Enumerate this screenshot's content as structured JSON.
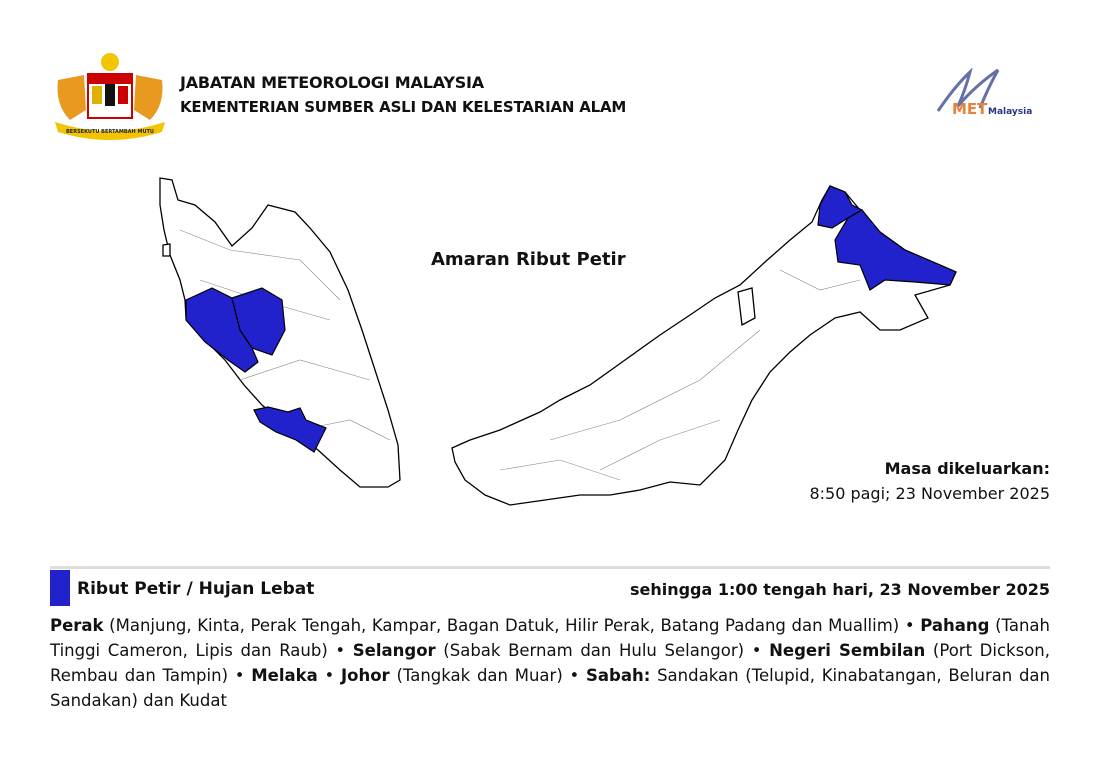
{
  "header": {
    "agency": "JABATAN METEOROLOGI MALAYSIA",
    "ministry": "KEMENTERIAN SUMBER ASLI DAN KELESTARIAN ALAM",
    "logo_brand": "METMalaysia",
    "crest_motto": "BERSEKUTU BERTAMBAH MUTU"
  },
  "map": {
    "title": "Amaran Ribut Petir",
    "warning_color": "#2222cc",
    "issued_label": "Masa dikeluarkan:",
    "issued_time": "8:50 pagi; 23 November 2025"
  },
  "section": {
    "title": "Ribut Petir / Hujan Lebat",
    "valid_until": "sehingga 1:00 tengah hari, 23 November 2025",
    "areas": [
      {
        "state": "Perak",
        "districts": "(Manjung, Kinta, Perak Tengah, Kampar, Bagan Datuk, Hilir Perak, Batang Padang dan Muallim)"
      },
      {
        "state": "Pahang",
        "districts": "(Tanah Tinggi Cameron, Lipis dan Raub)"
      },
      {
        "state": "Selangor",
        "districts": "(Sabak Bernam dan Hulu Selangor)"
      },
      {
        "state": "Negeri Sembilan",
        "districts": "(Port Dickson, Rembau dan Tampin)"
      },
      {
        "state": "Melaka",
        "districts": ""
      },
      {
        "state": "Johor",
        "districts": "(Tangkak dan Muar)"
      },
      {
        "state": "Sabah:",
        "districts": "Sandakan (Telupid, Kinabatangan, Beluran dan Sandakan) dan Kudat"
      }
    ],
    "separator": "•"
  }
}
